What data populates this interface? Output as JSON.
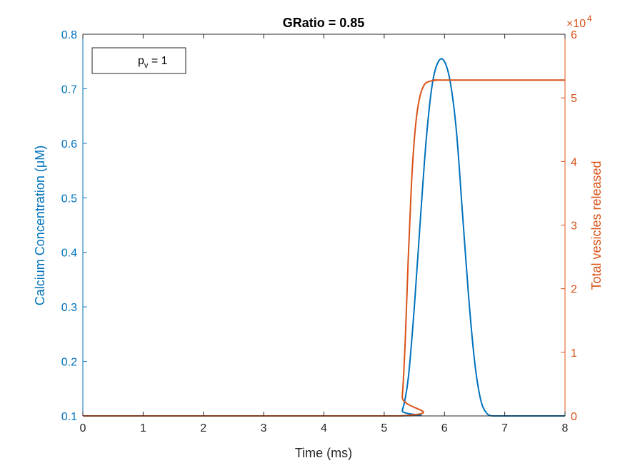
{
  "chart_data": {
    "type": "line",
    "title": "GRatio = 0.85",
    "xlabel": "Time (ms)",
    "xlim": [
      0,
      8
    ],
    "x_ticks": [
      "0",
      "1",
      "2",
      "3",
      "4",
      "5",
      "6",
      "7",
      "8"
    ],
    "ylabel_left": "Calcium Concentration (μM)",
    "ylim_left": [
      0.1,
      0.8
    ],
    "y_left_ticks": [
      "0.1",
      "0.2",
      "0.3",
      "0.4",
      "0.5",
      "0.6",
      "0.7",
      "0.8"
    ],
    "ylabel_right": "Total vesicles released",
    "ylim_right": [
      0,
      60000
    ],
    "y_right_ticks": [
      "0",
      "1",
      "2",
      "3",
      "4",
      "5",
      "6"
    ],
    "y_right_exponent": "×10",
    "y_right_exponent_power": "4",
    "grid": false,
    "legend": {
      "label": "p",
      "subscript": "v",
      "suffix": " = 1",
      "placement": "top-left"
    },
    "colors": {
      "left": "#0072BD",
      "right": "#D95319",
      "axes": "#262626"
    },
    "series": [
      {
        "axis": "left",
        "x": [
          0,
          5.2,
          5.3,
          5.4,
          5.5,
          5.6,
          5.7,
          5.8,
          5.9,
          6.0,
          6.1,
          6.2,
          6.3,
          6.4,
          6.5,
          6.6,
          6.7,
          6.8,
          6.9,
          8
        ],
        "y": [
          0.1,
          0.1,
          0.11,
          0.17,
          0.3,
          0.46,
          0.61,
          0.71,
          0.75,
          0.75,
          0.71,
          0.62,
          0.47,
          0.32,
          0.2,
          0.13,
          0.105,
          0.1,
          0.1,
          0.1
        ]
      },
      {
        "axis": "right",
        "x": [
          0,
          5.25,
          5.3,
          5.35,
          5.4,
          5.45,
          5.5,
          5.55,
          5.6,
          5.65,
          5.7,
          5.8,
          5.9,
          6.0,
          8
        ],
        "y": [
          0,
          0,
          3000,
          12000,
          25000,
          36000,
          43500,
          48000,
          50500,
          51800,
          52400,
          52700,
          52800,
          52800,
          52800
        ]
      }
    ]
  }
}
